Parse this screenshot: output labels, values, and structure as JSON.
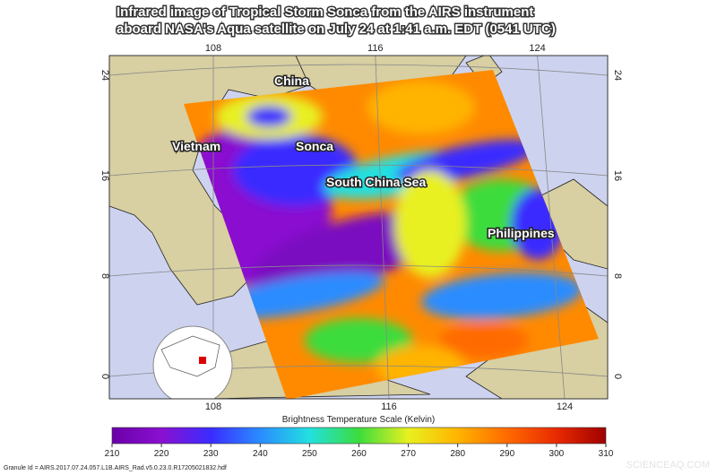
{
  "title": [
    "Infrared image of Tropical Storm Sonca from the AIRS instrument",
    "aboard NASA's Aqua satellite on July 24 at 1:41 a.m. EDT (0541 UTC)"
  ],
  "map": {
    "labels": [
      "China",
      "Vietnam",
      "Sonca",
      "South China Sea",
      "Philippines"
    ],
    "lon_ticks": [
      108,
      116,
      124
    ],
    "lat_ticks": [
      24,
      16,
      8,
      0
    ]
  },
  "colorbar": {
    "title": "Brightness Temperature Scale (Kelvin)",
    "lim": [
      210,
      310
    ],
    "ticks": [
      210,
      220,
      230,
      240,
      250,
      260,
      270,
      280,
      290,
      300,
      310
    ],
    "colors": [
      "#6a00a8",
      "#8a10d0",
      "#3a2cff",
      "#2a8cff",
      "#22e0e0",
      "#3cdc3c",
      "#e8f020",
      "#ffb400",
      "#ff6a00",
      "#e82a00",
      "#a00000"
    ]
  },
  "granule": "Granule Id = AIRS.2017.07.24.057.L1B.AIRS_Rad.v5.0.23.0.R17205021832.hdf",
  "watermark": "SCIENCEAQ.COM"
}
